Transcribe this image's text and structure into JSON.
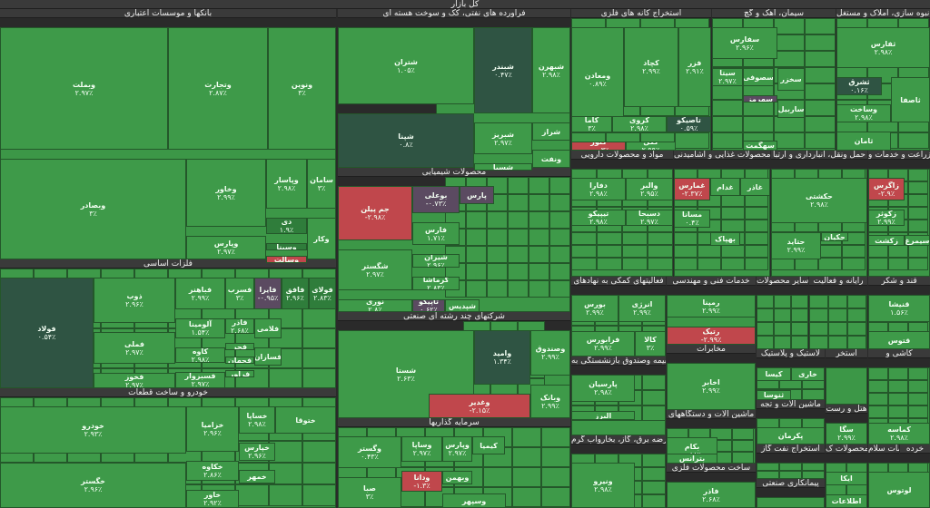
{
  "title": "کل بازار",
  "colors": {
    "up": "#3e9a49",
    "down": "#c0474c",
    "flat": "#2f5443",
    "neutral": "#5b4a61"
  },
  "sectors": [
    {
      "id": "banks",
      "name": "بانکها و موسسات اعتباری"
    },
    {
      "id": "oil",
      "name": "فراورده های نفتی، کک و سوخت هسته ای"
    },
    {
      "id": "metal_ext",
      "name": "استخراج کانه های فلزی"
    },
    {
      "id": "cement",
      "name": "سیمان، آهک و گچ"
    },
    {
      "id": "building",
      "name": "انبوه سازی، املاک و مستغل"
    },
    {
      "id": "chemical",
      "name": "محصولات شیمیایی"
    },
    {
      "id": "pharma",
      "name": "مواد و محصولات دارویی"
    },
    {
      "id": "food",
      "name": "محصولات غذایی و آشامیدنی"
    },
    {
      "id": "transport",
      "name": "حمل ونقل، انبارداری و ارتبا"
    },
    {
      "id": "agri",
      "name": "زراعت و خدمات و"
    },
    {
      "id": "basic_metals",
      "name": "فلزات اساسی"
    },
    {
      "id": "multi",
      "name": "شرکتهای چند رشته ای صنعتی"
    },
    {
      "id": "auto",
      "name": "خودرو و ساخت قطعات"
    },
    {
      "id": "invest",
      "name": "سرمایه گذاریها"
    },
    {
      "id": "support",
      "name": "فعالیتهای کمکی به نهادهای"
    },
    {
      "id": "tech",
      "name": "خدمات فنی و مهندسی"
    },
    {
      "id": "sugar",
      "name": "قند و شکر"
    },
    {
      "id": "computer",
      "name": "رایانه و فعالیت"
    },
    {
      "id": "other",
      "name": "سایر محصولات"
    },
    {
      "id": "telecom",
      "name": "مخابرات"
    },
    {
      "id": "insurance",
      "name": "بیمه وصندوق بازنشستگی به"
    },
    {
      "id": "rubber",
      "name": "لاستیک و پلاستیک"
    },
    {
      "id": "utility",
      "name": "عرضه برق، گاز، بخاروآب گرم"
    },
    {
      "id": "machinery",
      "name": "ماشین آلات و دستگاههای"
    },
    {
      "id": "metal_prod",
      "name": "ساخت محصولات فلزی"
    },
    {
      "id": "mining",
      "name": "استخراج نفت گاز"
    },
    {
      "id": "paper",
      "name": "محصولات ک"
    },
    {
      "id": "ceramic",
      "name": "کاشی و"
    },
    {
      "id": "sayer",
      "name": "سایر ها"
    },
    {
      "id": "wood",
      "name": "استخر"
    },
    {
      "id": "hotel",
      "name": "هتل و رست"
    },
    {
      "id": "textile",
      "name": "ماشین آلات و تجه"
    },
    {
      "id": "contract",
      "name": "پیمانکاری صنعتی"
    },
    {
      "id": "health",
      "name": "خدمات سلام"
    },
    {
      "id": "retail",
      "name": "خرده"
    }
  ],
  "tiles": [
    {
      "n": "وبملت",
      "p": "۲.۹۷٪"
    },
    {
      "n": "وتجارت",
      "p": "۲.۸۷٪"
    },
    {
      "n": "ونوین",
      "p": "۳٪"
    },
    {
      "n": "وبصادر",
      "p": "۳٪"
    },
    {
      "n": "وخاور",
      "p": "۲.۹۹٪"
    },
    {
      "n": "وپاسار",
      "p": "۲.۹۸٪"
    },
    {
      "n": "سامان",
      "p": "۳٪"
    },
    {
      "n": "وپارس",
      "p": "۲.۹۷٪"
    },
    {
      "n": "دی",
      "p": "۱.۹٪"
    },
    {
      "n": "وسینا",
      "p": ""
    },
    {
      "n": "وسالت",
      "p": ""
    },
    {
      "n": "وکار",
      "p": ""
    },
    {
      "n": "شتران",
      "p": "۱.۰۵٪"
    },
    {
      "n": "شبندر",
      "p": "۰.۴۷٪"
    },
    {
      "n": "شبهرن",
      "p": "۲.۹۸٪"
    },
    {
      "n": "شپنا",
      "p": "۰.۸٪"
    },
    {
      "n": "شبریز",
      "p": "۲.۹۷٪"
    },
    {
      "n": "شراز",
      "p": ""
    },
    {
      "n": "شسپا",
      "p": ""
    },
    {
      "n": "ونفت",
      "p": ""
    },
    {
      "n": "ومعادن",
      "p": "۰.۸۹٪"
    },
    {
      "n": "کچاد",
      "p": "۲.۹۹٪"
    },
    {
      "n": "فزر",
      "p": "۲.۹۱٪"
    },
    {
      "n": "کاما",
      "p": "۳٪"
    },
    {
      "n": "کروی",
      "p": "۲.۹۸٪"
    },
    {
      "n": "تاصیکو",
      "p": "۰.۵۹٪"
    },
    {
      "n": "کنور",
      "p": "-۰.۰۳٪"
    },
    {
      "n": "کگل",
      "p": "۲.۹۹٪"
    },
    {
      "n": "سفارس",
      "p": "۲.۹۶٪"
    },
    {
      "n": "سیتا",
      "p": "۲.۹۷٪"
    },
    {
      "n": "سصوفی",
      "p": ""
    },
    {
      "n": "سهرمز",
      "p": ""
    },
    {
      "n": "سهگمت",
      "p": ""
    },
    {
      "n": "سخزر",
      "p": ""
    },
    {
      "n": "ساربیل",
      "p": ""
    },
    {
      "n": "ثفارس",
      "p": "۲.۹۸٪"
    },
    {
      "n": "ثشرق",
      "p": "۰.۱۶٪"
    },
    {
      "n": "وساخت",
      "p": "۲.۹۸٪"
    },
    {
      "n": "ثامان",
      "p": ""
    },
    {
      "n": "ثاصفا",
      "p": ""
    },
    {
      "n": "جم پیلن",
      "p": "-۲.۹۸٪"
    },
    {
      "n": "بوعلی",
      "p": "-۰.۷۳٪"
    },
    {
      "n": "پارس",
      "p": ""
    },
    {
      "n": "فارس",
      "p": "۱.۷۱٪"
    },
    {
      "n": "شگستر",
      "p": "۲.۹۷٪"
    },
    {
      "n": "شیران",
      "p": "۲.۹۶٪"
    },
    {
      "n": "کرماشا",
      "p": "۲.۸۳٪"
    },
    {
      "n": "نوری",
      "p": "۲.۸٪"
    },
    {
      "n": "تاپیکو",
      "p": "۰.۶۲٪"
    },
    {
      "n": "شپدیس",
      "p": ""
    },
    {
      "n": "فولاد",
      "p": "۰.۵۴٪"
    },
    {
      "n": "ذوب",
      "p": "۲.۹۶٪"
    },
    {
      "n": "فملی",
      "p": "۲.۹۷٪"
    },
    {
      "n": "فخوز",
      "p": "۲.۹۷٪"
    },
    {
      "n": "فباهنر",
      "p": "۲.۹۹٪"
    },
    {
      "n": "فسرب",
      "p": "۳٪"
    },
    {
      "n": "فایرا",
      "p": "-۰.۹۵٪"
    },
    {
      "n": "فاذر",
      "p": "۲.۶۸٪"
    },
    {
      "n": "فافق",
      "p": "۲.۹۶٪"
    },
    {
      "n": "فولای",
      "p": "۲.۸۳٪"
    },
    {
      "n": "آلومینا",
      "p": "۱.۵۴٪"
    },
    {
      "n": "کاوه",
      "p": "۲.۹۸٪"
    },
    {
      "n": "فسبزوار",
      "p": "۲.۹۷٪"
    },
    {
      "n": "فجر",
      "p": ""
    },
    {
      "n": "فجهان",
      "p": ""
    },
    {
      "n": "فرآور",
      "p": ""
    },
    {
      "n": "فلامی",
      "p": ""
    },
    {
      "n": "فسازان",
      "p": ""
    },
    {
      "n": "شستا",
      "p": "۲.۶۳٪"
    },
    {
      "n": "وامید",
      "p": "۱.۳۴٪"
    },
    {
      "n": "وصندوق",
      "p": "۲.۹۹٪"
    },
    {
      "n": "وغدیر",
      "p": "-۲.۱۵٪"
    },
    {
      "n": "وبانک",
      "p": "۲.۹۹٪"
    },
    {
      "n": "خودرو",
      "p": "۲.۹۳٪"
    },
    {
      "n": "خزامیا",
      "p": "۲.۹۶٪"
    },
    {
      "n": "خساپا",
      "p": "۲.۹۸٪"
    },
    {
      "n": "خپارس",
      "p": "۲.۹۶٪"
    },
    {
      "n": "خگستر",
      "p": "۲.۹۶٪"
    },
    {
      "n": "خکاوه",
      "p": "۲.۸۶٪"
    },
    {
      "n": "خاور",
      "p": "۲.۹۲٪"
    },
    {
      "n": "ختوقا",
      "p": ""
    },
    {
      "n": "خمهر",
      "p": ""
    },
    {
      "n": "وگستر",
      "p": "۰.۴۳٪"
    },
    {
      "n": "وساپا",
      "p": "۲.۹۷٪"
    },
    {
      "n": "وپارس",
      "p": "۰.۷۴٪"
    },
    {
      "n": "صبا",
      "p": "۳٪"
    },
    {
      "n": "ودانا",
      "p": "-۱.۳٪"
    },
    {
      "n": "وبهمن",
      "p": ""
    },
    {
      "n": "کیمیا",
      "p": ""
    },
    {
      "n": "وسپهر",
      "p": ""
    },
    {
      "n": "دفارا",
      "p": "۲.۹۸٪"
    },
    {
      "n": "والبر",
      "p": "۲.۹۵٪"
    },
    {
      "n": "تیپیکو",
      "p": "۲.۹۸٪"
    },
    {
      "n": "دسبحا",
      "p": "۲.۹۷٪"
    },
    {
      "n": "غمارس",
      "p": "-۲.۳۷٪"
    },
    {
      "n": "مسانا",
      "p": "۰.۴٪"
    },
    {
      "n": "غدام",
      "p": ""
    },
    {
      "n": "غاذر",
      "p": ""
    },
    {
      "n": "بهپاک",
      "p": ""
    },
    {
      "n": "حکشتی",
      "p": "۲.۹۸٪"
    },
    {
      "n": "حتاید",
      "p": "۲.۹۹٪"
    },
    {
      "n": "حکیان",
      "p": ""
    },
    {
      "n": "زاگرس",
      "p": "-۲.۹٪"
    },
    {
      "n": "زکوثر",
      "p": "۲.۹۹٪"
    },
    {
      "n": "زکشت",
      "p": ""
    },
    {
      "n": "سیمرغ",
      "p": ""
    },
    {
      "n": "بورس",
      "p": "۲.۹۹٪"
    },
    {
      "n": "انرژی",
      "p": "۲.۹۹٪"
    },
    {
      "n": "فرابورس",
      "p": "۲.۹۹٪"
    },
    {
      "n": "کالا",
      "p": "۳٪"
    },
    {
      "n": "رمپنا",
      "p": "۲.۹۹٪"
    },
    {
      "n": "رتیک",
      "p": "-۲.۹۹٪"
    },
    {
      "n": "اخابر",
      "p": "۲.۹۹٪"
    },
    {
      "n": "پارسیان",
      "p": "۲.۹۸٪"
    },
    {
      "n": "البرز",
      "p": ""
    },
    {
      "n": "ونیرو",
      "p": "۲.۹۸٪"
    },
    {
      "n": "بکام",
      "p": "۰.۸۸٪"
    },
    {
      "n": "بترانس",
      "p": ""
    },
    {
      "n": "فاذر",
      "p": "۲.۹۷٪"
    },
    {
      "n": "قنیشا",
      "p": "۱.۵۶٪"
    },
    {
      "n": "قتوس",
      "p": ""
    },
    {
      "n": "سگا",
      "p": "۲.۹۹٪"
    },
    {
      "n": "کیسا",
      "p": ""
    },
    {
      "n": "خاری",
      "p": ""
    },
    {
      "n": "ثنوسا",
      "p": ""
    },
    {
      "n": "کماسه",
      "p": "۲.۹۸٪"
    },
    {
      "n": "پکرمان",
      "p": ""
    },
    {
      "n": "ایکا",
      "p": ""
    },
    {
      "n": "اطلاعات",
      "p": ""
    },
    {
      "n": "لوتوس",
      "p": ""
    }
  ]
}
